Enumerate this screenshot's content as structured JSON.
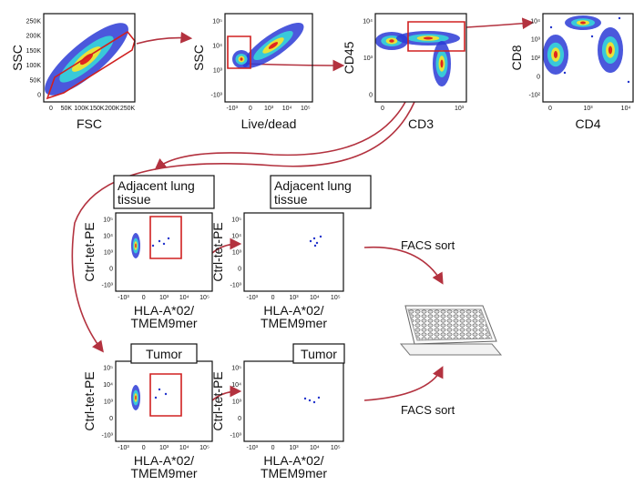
{
  "panels": [
    {
      "x_label": "FSC",
      "y_label": "SSC",
      "x_ticks": [
        "0",
        "50K",
        "100K",
        "150K",
        "200K",
        "250K"
      ],
      "y_ticks": [
        "0",
        "50K",
        "100K",
        "150K",
        "200K",
        "250K"
      ]
    },
    {
      "x_label": "Live/dead",
      "y_label": "SSC",
      "x_ticks": [
        "-10³",
        "0",
        "10³",
        "10⁴",
        "10⁵"
      ],
      "y_ticks": [
        "-10³",
        "10³",
        "10⁴",
        "10⁵"
      ]
    },
    {
      "x_label": "CD3",
      "y_label": "CD45",
      "x_ticks": [
        "0",
        "10³"
      ],
      "y_ticks": [
        "0",
        "10³",
        "10⁴"
      ]
    },
    {
      "x_label": "CD4",
      "y_label": "CD8",
      "x_ticks": [
        "0",
        "10³",
        "10⁴"
      ],
      "y_ticks": [
        "-10²",
        "0",
        "10²",
        "10³",
        "10⁴"
      ]
    },
    {
      "title": [
        "Adjacent lung",
        "tissue"
      ],
      "x_label": [
        "HLA-A*02/",
        "TMEM9mer"
      ],
      "y_label": "Ctrl-tet-PE",
      "x_ticks": [
        "-10³",
        "0",
        "10³",
        "10⁴",
        "10⁵"
      ],
      "y_ticks": [
        "-10³",
        "0",
        "10³",
        "10⁴",
        "10⁵"
      ]
    },
    {
      "title": [
        "Adjacent lung",
        "tissue"
      ],
      "x_label": [
        "HLA-A*02/",
        "TMEM9mer"
      ],
      "y_label": "Ctrl-tet-PE",
      "x_ticks": [
        "-10³",
        "0",
        "10³",
        "10⁴",
        "10⁵"
      ],
      "y_ticks": [
        "-10³",
        "0",
        "10³",
        "10⁴",
        "10⁵"
      ]
    },
    {
      "title": [
        "Tumor"
      ],
      "x_label": [
        "HLA-A*02/",
        "TMEM9mer"
      ],
      "y_label": "Ctrl-tet-PE",
      "x_ticks": [
        "-10³",
        "0",
        "10³",
        "10⁴",
        "10⁵"
      ],
      "y_ticks": [
        "-10³",
        "0",
        "10³",
        "10⁴",
        "10⁵"
      ]
    },
    {
      "title": [
        "Tumor"
      ],
      "x_label": [
        "HLA-A*02/",
        "TMEM9mer"
      ],
      "y_label": "Ctrl-tet-PE",
      "x_ticks": [
        "-10³",
        "0",
        "10³",
        "10⁴",
        "10⁵"
      ],
      "y_ticks": [
        "-10³",
        "0",
        "10³",
        "10⁴",
        "10⁵"
      ]
    }
  ],
  "annotations": [
    "FACS sort",
    "FACS sort"
  ]
}
